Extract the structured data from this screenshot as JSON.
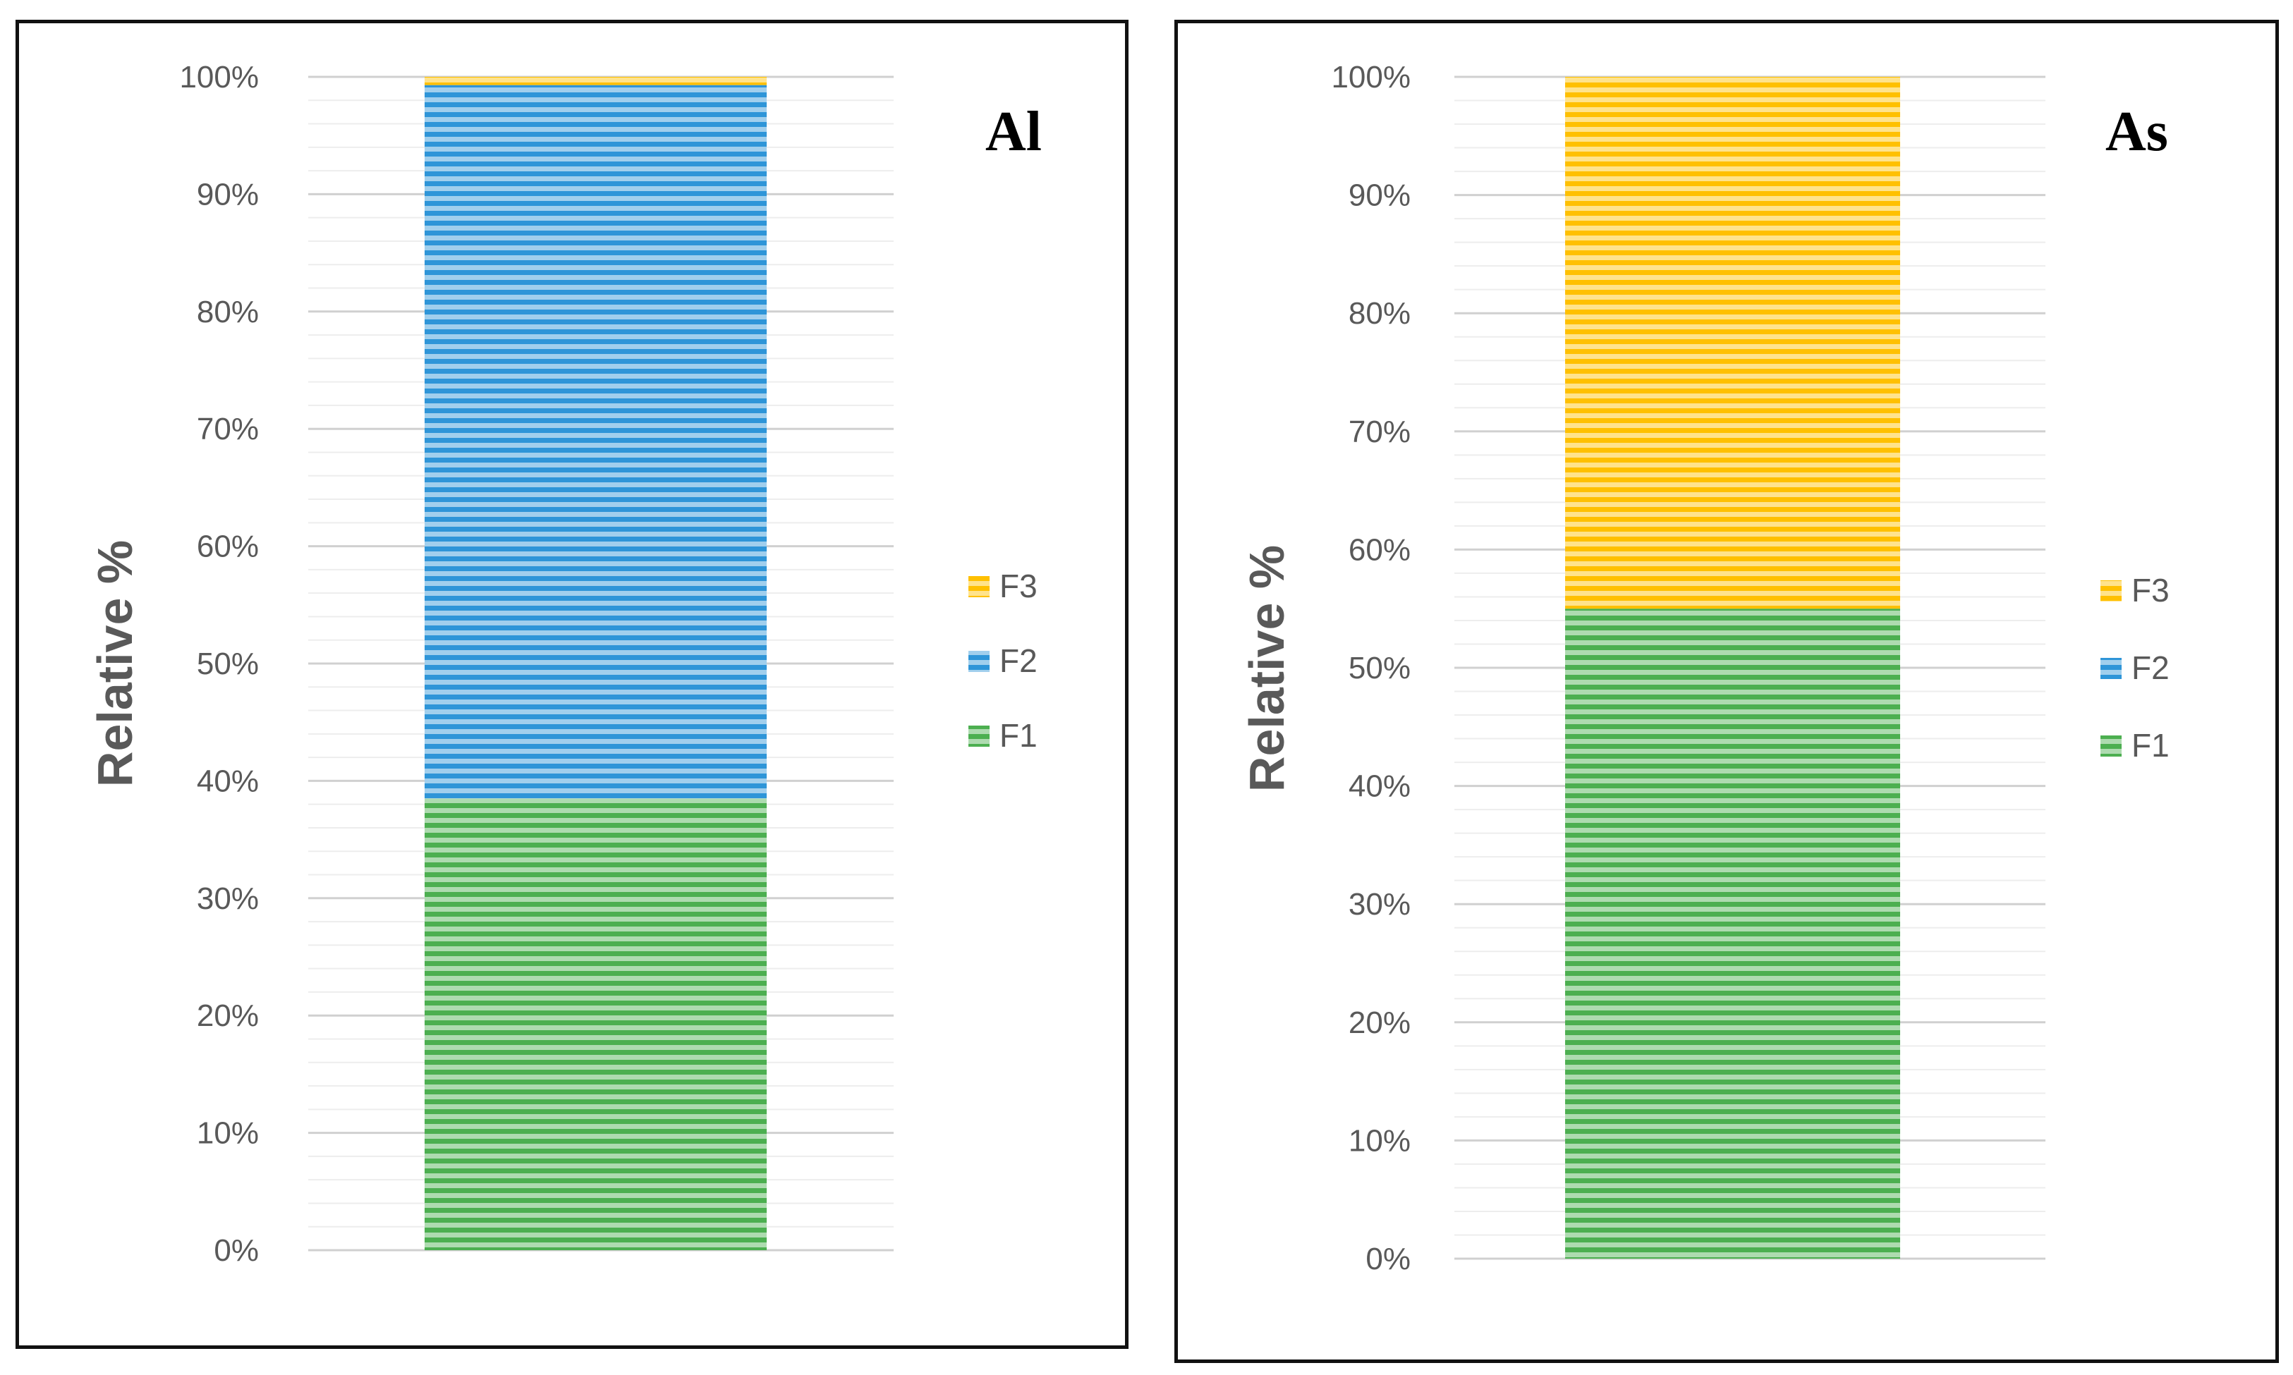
{
  "chart_data": [
    {
      "type": "bar",
      "stacked": true,
      "title": "Al",
      "ylabel": "Relative %",
      "xlabel": "",
      "categories": [
        ""
      ],
      "ylim": [
        0,
        100
      ],
      "yticks": [
        "0%",
        "10%",
        "20%",
        "30%",
        "40%",
        "50%",
        "60%",
        "70%",
        "80%",
        "90%",
        "100%"
      ],
      "grid": true,
      "legend_position": "right",
      "series": [
        {
          "name": "F1",
          "values": [
            38.5
          ],
          "color": "#4CAF50"
        },
        {
          "name": "F2",
          "values": [
            60.8
          ],
          "color": "#2E95D8"
        },
        {
          "name": "F3",
          "values": [
            0.7
          ],
          "color": "#FFC000"
        }
      ]
    },
    {
      "type": "bar",
      "stacked": true,
      "title": "As",
      "ylabel": "Relative %",
      "xlabel": "",
      "categories": [
        ""
      ],
      "ylim": [
        0,
        100
      ],
      "yticks": [
        "0%",
        "10%",
        "20%",
        "30%",
        "40%",
        "50%",
        "60%",
        "70%",
        "80%",
        "90%",
        "100%"
      ],
      "grid": true,
      "legend_position": "right",
      "series": [
        {
          "name": "F1",
          "values": [
            55
          ],
          "color": "#4CAF50"
        },
        {
          "name": "F2",
          "values": [
            0
          ],
          "color": "#2E95D8"
        },
        {
          "name": "F3",
          "values": [
            45
          ],
          "color": "#FFC000"
        }
      ]
    }
  ]
}
